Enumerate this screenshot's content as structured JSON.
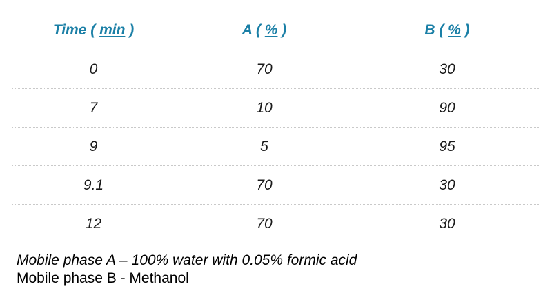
{
  "table": {
    "headers": [
      {
        "pre": "Time ",
        "open": "( ",
        "unit": "min",
        "close": " )"
      },
      {
        "pre": "A ",
        "open": "( ",
        "unit": "%",
        "close": " )"
      },
      {
        "pre": "B ",
        "open": "( ",
        "unit": "%",
        "close": " )"
      }
    ],
    "rows": [
      [
        "0",
        "70",
        "30"
      ],
      [
        "7",
        "10",
        "90"
      ],
      [
        "9",
        "5",
        "95"
      ],
      [
        "9.1",
        "70",
        "30"
      ],
      [
        "12",
        "70",
        "30"
      ]
    ],
    "colors": {
      "header_text": "#1a7fa6",
      "rule": "#3f8fb0"
    }
  },
  "notes": {
    "line1": "Mobile phase A – 100% water with 0.05% formic acid",
    "line2": "Mobile phase B - Methanol"
  }
}
